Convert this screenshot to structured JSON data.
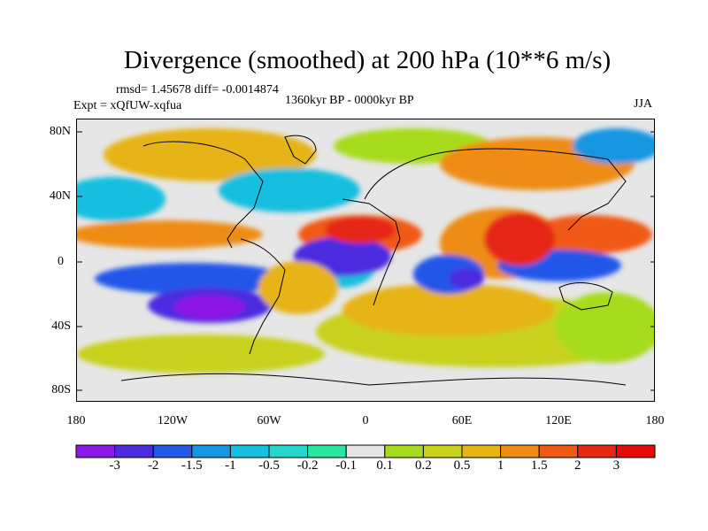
{
  "title": "Divergence (smoothed) at 200 hPa (10**6 m/s)",
  "stats_line": "rmsd= 1.45678 diff= -0.0014874",
  "experiment_line": "Expt = xQfUW-xqfua",
  "period_line": "1360kyr BP - 0000kyr BP",
  "season_label": "JJA",
  "axes": {
    "y_ticks": [
      "80N",
      "40N",
      "0",
      "40S",
      "80S"
    ],
    "x_ticks": [
      "180",
      "120W",
      "60W",
      "0",
      "60E",
      "120E",
      "180"
    ]
  },
  "colorbar": {
    "labels": [
      "-3",
      "-2",
      "-1.5",
      "-1",
      "-0.5",
      "-0.2",
      "-0.1",
      "0.1",
      "0.2",
      "0.5",
      "1",
      "1.5",
      "2",
      "3"
    ],
    "colors": [
      "#8c19e6",
      "#4b2ae0",
      "#2357e8",
      "#1496e0",
      "#19bfe0",
      "#23d8c8",
      "#2ae6a0",
      "#e6e6e6",
      "#a6dc1e",
      "#c8d21a",
      "#e6b414",
      "#ee8c14",
      "#f05a14",
      "#e62814",
      "#e60a0a"
    ]
  }
}
